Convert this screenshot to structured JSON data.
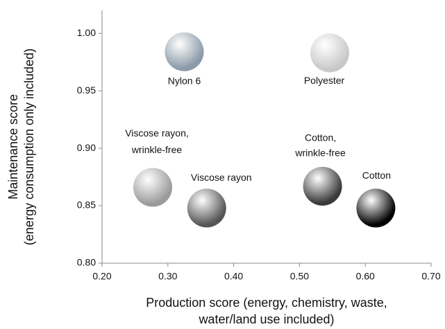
{
  "chart_data": {
    "type": "scatter",
    "x_label": [
      "Production score (energy, chemistry, waste,",
      "water/land use included)"
    ],
    "y_label": [
      "Maintenance score",
      "(energy consumption only included)"
    ],
    "labels": [
      [
        "Nylon 6"
      ],
      [
        "Polyester"
      ],
      [
        "Viscose rayon,",
        "wrinkle-free"
      ],
      [
        "Viscose rayon"
      ],
      [
        "Cotton,",
        "wrinkle-free"
      ],
      [
        "Cotton"
      ]
    ],
    "x": [
      0.325,
      0.546,
      0.277,
      0.359,
      0.535,
      0.616
    ],
    "y": [
      0.984,
      0.983,
      0.866,
      0.848,
      0.867,
      0.848
    ],
    "colors": [
      "#8a9aa8",
      "#c8c8c8",
      "#9a9a9a",
      "#555555",
      "#3a3a3a",
      "#000000"
    ],
    "xlim": [
      0.2,
      0.7
    ],
    "ylim": [
      0.8,
      1.02
    ],
    "xticks": [
      {
        "value": 0.2,
        "label": "0.20"
      },
      {
        "value": 0.3,
        "label": "0.30"
      },
      {
        "value": 0.4,
        "label": "0.40"
      },
      {
        "value": 0.5,
        "label": "0.50"
      },
      {
        "value": 0.6,
        "label": "0.60"
      },
      {
        "value": 0.7,
        "label": "0.70"
      }
    ],
    "yticks": [
      {
        "value": 0.8,
        "label": "0.80"
      },
      {
        "value": 0.85,
        "label": "0.85"
      },
      {
        "value": 0.9,
        "label": "0.90"
      },
      {
        "value": 0.95,
        "label": "0.95"
      },
      {
        "value": 1.0,
        "label": "1.00"
      }
    ],
    "grid": false
  }
}
